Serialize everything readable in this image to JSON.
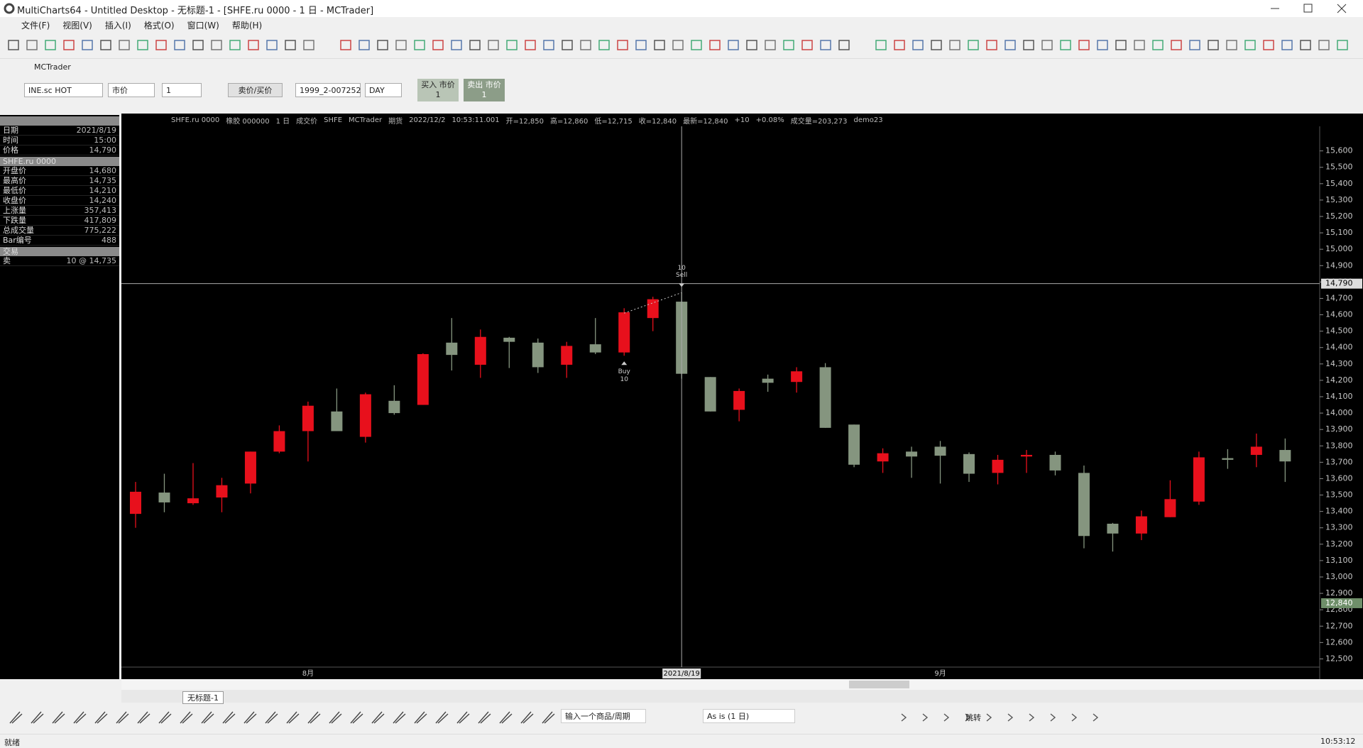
{
  "window": {
    "title": "MultiCharts64 - Untitled Desktop - 无标题-1 - [SHFE.ru 0000 - 1 日 - MCTrader]"
  },
  "menu": [
    "文件(F)",
    "视图(V)",
    "插入(I)",
    "格式(O)",
    "窗口(W)",
    "帮助(H)"
  ],
  "trade_bar": {
    "title": "MCTrader",
    "symbol": "INE.sc HOT",
    "order_type": "市价",
    "quantity": "1",
    "price_mode": "卖价/买价",
    "account": "1999_2-007252",
    "duration": "DAY",
    "buy_button": "买入 市价",
    "buy_quantity": "1",
    "sell_button": "卖出 市价",
    "sell_quantity": "1"
  },
  "data_window": [
    {
      "rows": [
        [
          "日期",
          "2021/8/19"
        ],
        [
          "时间",
          "15:00"
        ],
        [
          "价格",
          "14,790"
        ]
      ]
    },
    {
      "title": "SHFE.ru 0000",
      "rows": [
        [
          "开盘价",
          "14,680"
        ],
        [
          "最高价",
          "14,735"
        ],
        [
          "最低价",
          "14,210"
        ],
        [
          "收盘价",
          "14,240"
        ],
        [
          "上涨量",
          "357,413"
        ],
        [
          "下跌量",
          "417,809"
        ],
        [
          "总成交量",
          "775,222"
        ],
        [
          "Bar编号",
          "488"
        ]
      ]
    },
    {
      "title": "交易",
      "rows": [
        [
          "卖",
          "10 @ 14,735"
        ]
      ]
    }
  ],
  "chart_header": [
    "SHFE.ru 0000",
    "橡胶 000000",
    "1 日",
    "成交价",
    "SHFE",
    "MCTrader",
    "期货",
    "2022/12/2",
    "10:53:11.001",
    "开=12,850",
    "高=12,860",
    "低=12,715",
    "收=12,840",
    "最新=12,840",
    "+10",
    "+0.08%",
    "成交量=203,273",
    "demo23"
  ],
  "chart_data": {
    "type": "candlestick",
    "categories": [
      null,
      null,
      null,
      null,
      null,
      null,
      "8月",
      null,
      null,
      null,
      null,
      null,
      null,
      null,
      null,
      null,
      null,
      null,
      null,
      "2021/8/19",
      null,
      null,
      null,
      null,
      null,
      null,
      null,
      null,
      "9月",
      null,
      null,
      null,
      null,
      null,
      null,
      null,
      null,
      null,
      null,
      null,
      null
    ],
    "open": [
      13385,
      13515,
      13450,
      13485,
      13570,
      13765,
      13890,
      14010,
      13855,
      14075,
      14050,
      14430,
      14295,
      14460,
      14430,
      14295,
      14420,
      14370,
      14580,
      14680,
      14220,
      14020,
      14210,
      14190,
      14280,
      13930,
      13705,
      13765,
      13795,
      13750,
      13635,
      13735,
      13745,
      13635,
      13325,
      13265,
      13365,
      13460,
      13725,
      13745,
      13775
    ],
    "high": [
      13580,
      13630,
      13695,
      13605,
      13765,
      13925,
      14070,
      14150,
      14125,
      14170,
      14365,
      14580,
      14510,
      14465,
      14455,
      14435,
      14580,
      14640,
      14710,
      14735,
      14220,
      14150,
      14235,
      14280,
      14305,
      13930,
      13785,
      13795,
      13830,
      13760,
      13745,
      13775,
      13765,
      13680,
      13330,
      13405,
      13590,
      13765,
      13780,
      13875,
      13845
    ],
    "low": [
      13300,
      13395,
      13440,
      13395,
      13510,
      13755,
      13705,
      13890,
      13820,
      13990,
      14050,
      14260,
      14215,
      14275,
      14245,
      14215,
      14360,
      14350,
      14500,
      14210,
      14010,
      13950,
      14130,
      14125,
      13910,
      13670,
      13635,
      13605,
      13570,
      13580,
      13565,
      13635,
      13620,
      13175,
      13155,
      13225,
      13365,
      13440,
      13660,
      13670,
      13580
    ],
    "close": [
      13520,
      13455,
      13480,
      13560,
      13765,
      13890,
      14045,
      13890,
      14115,
      14000,
      14360,
      14355,
      14465,
      14435,
      14280,
      14410,
      14370,
      14615,
      14695,
      14240,
      14010,
      14135,
      14185,
      14255,
      13910,
      13685,
      13755,
      13735,
      13740,
      13630,
      13715,
      13745,
      13650,
      13250,
      13265,
      13370,
      13475,
      13730,
      13715,
      13795,
      13705
    ],
    "up_color": "#e8101c",
    "down_color": "#85957f",
    "ylim": [
      12450,
      15750
    ],
    "yticks": [
      {
        "value": 12500,
        "label": "12,500"
      },
      {
        "value": 12600,
        "label": "12,600"
      },
      {
        "value": 12700,
        "label": "12,700"
      },
      {
        "value": 12800,
        "label": "12,800"
      },
      {
        "value": 12900,
        "label": "12,900"
      },
      {
        "value": 13000,
        "label": "13,000"
      },
      {
        "value": 13100,
        "label": "13,100"
      },
      {
        "value": 13200,
        "label": "13,200"
      },
      {
        "value": 13300,
        "label": "13,300"
      },
      {
        "value": 13400,
        "label": "13,400"
      },
      {
        "value": 13500,
        "label": "13,500"
      },
      {
        "value": 13600,
        "label": "13,600"
      },
      {
        "value": 13700,
        "label": "13,700"
      },
      {
        "value": 13800,
        "label": "13,800"
      },
      {
        "value": 13900,
        "label": "13,900"
      },
      {
        "value": 14000,
        "label": "14,000"
      },
      {
        "value": 14100,
        "label": "14,100"
      },
      {
        "value": 14200,
        "label": "14,200"
      },
      {
        "value": 14300,
        "label": "14,300"
      },
      {
        "value": 14400,
        "label": "14,400"
      },
      {
        "value": 14500,
        "label": "14,500"
      },
      {
        "value": 14600,
        "label": "14,600"
      },
      {
        "value": 14700,
        "label": "14,700"
      },
      {
        "value": 14800,
        "label": "14,800"
      },
      {
        "value": 14900,
        "label": "14,900"
      },
      {
        "value": 15000,
        "label": "15,000"
      },
      {
        "value": 15100,
        "label": "15,100"
      },
      {
        "value": 15200,
        "label": "15,200"
      },
      {
        "value": 15300,
        "label": "15,300"
      },
      {
        "value": 15400,
        "label": "15,400"
      },
      {
        "value": 15500,
        "label": "15,500"
      },
      {
        "value": 15600,
        "label": "15,600"
      }
    ],
    "grid": false,
    "crosshair": {
      "category": "2021/8/19",
      "price": {
        "value": 14790,
        "label": "14,790"
      }
    },
    "last_price": {
      "value": 12840,
      "label": "12,840"
    },
    "trades": [
      {
        "name": "Buy",
        "quantity": 10,
        "prices": [
          null,
          null,
          null,
          null,
          null,
          null,
          null,
          null,
          null,
          null,
          null,
          null,
          null,
          null,
          null,
          null,
          null,
          14610,
          null,
          null,
          null,
          null,
          null,
          null,
          null,
          null,
          null,
          null,
          null,
          null,
          null,
          null,
          null,
          null,
          null,
          null,
          null,
          null,
          null,
          null,
          null
        ]
      },
      {
        "name": "Sell",
        "quantity": 10,
        "prices": [
          null,
          null,
          null,
          null,
          null,
          null,
          null,
          null,
          null,
          null,
          null,
          null,
          null,
          null,
          null,
          null,
          null,
          null,
          null,
          14735,
          null,
          null,
          null,
          null,
          null,
          null,
          null,
          null,
          null,
          null,
          null,
          null,
          null,
          null,
          null,
          null,
          null,
          null,
          null,
          null,
          null
        ]
      }
    ]
  },
  "tab": "无标题-1",
  "bottom_toolbar": {
    "symbol_input": "输入一个商品/周期",
    "resolution": "As is (1 日)",
    "jump": "跳转"
  },
  "status": {
    "state": "就绪",
    "time": "10:53:12"
  }
}
